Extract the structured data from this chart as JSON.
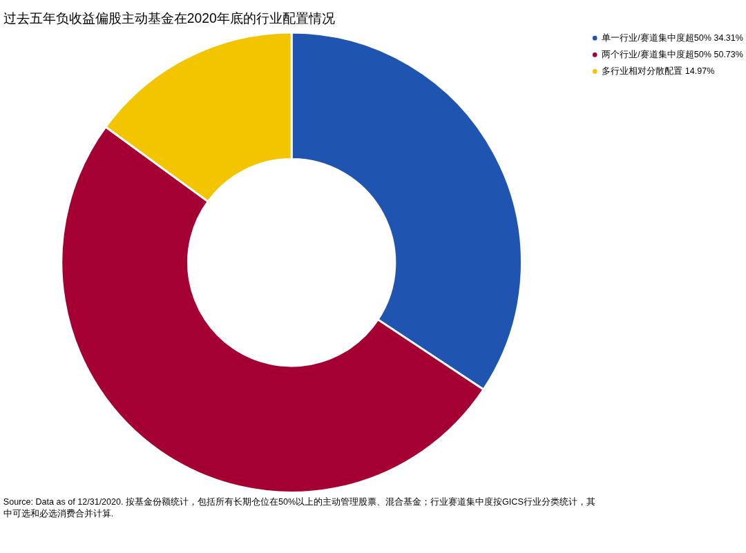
{
  "chart_data": {
    "type": "donut",
    "title": "过去五年负收益偏股主动基金在2020年底的行业配置情况",
    "categories": [
      "单一行业/赛道集中度超50%",
      "两个行业/赛道集中度超50%",
      "多行业相对分散配置"
    ],
    "values": [
      34.31,
      50.73,
      14.97
    ],
    "value_labels": [
      "34.31%",
      "50.73%",
      "14.97%"
    ],
    "colors": [
      "#1f55b0",
      "#a50034",
      "#f2c500"
    ],
    "legend": "top right",
    "annotations": [
      "Source: Data as of 12/31/2020. 按基金份额统计，包括所有长期仓位在50%以上的主动管理股票、混合基金；行业赛道集中度按GICS行业分类统计，其中可选和必选消费合并计算."
    ]
  }
}
